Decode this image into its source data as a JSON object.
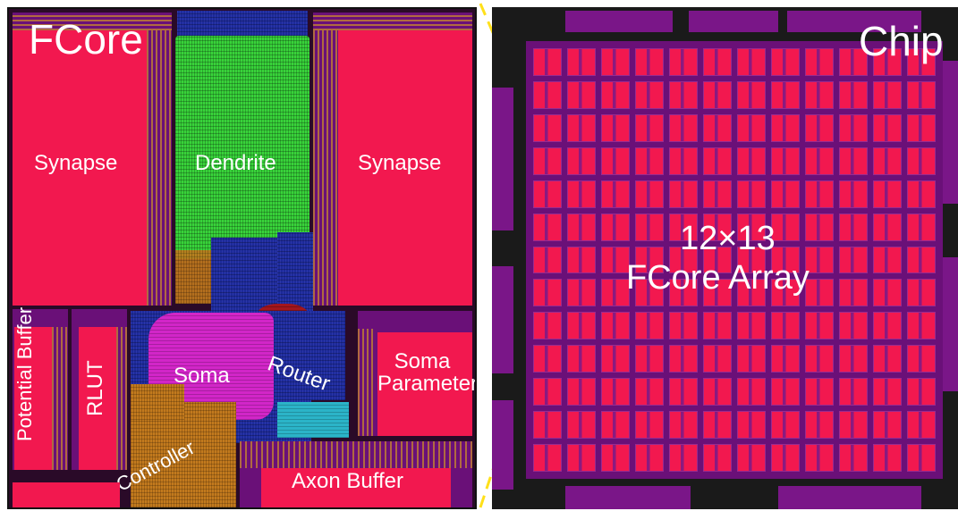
{
  "fcore_panel": {
    "title": "FCore",
    "blocks": {
      "synapse_left": "Synapse",
      "dendrite": "Dendrite",
      "synapse_right": "Synapse",
      "potential_buffer": "Potential Buffer",
      "rlut": "RLUT",
      "soma": "Soma",
      "router": "Router",
      "soma_parameter": "Soma Parameter",
      "controller": "Controller",
      "axon_buffer": "Axon Buffer"
    }
  },
  "chip_panel": {
    "title": "Chip",
    "array_label_line1": "12×13",
    "array_label_line2": "FCore Array",
    "array_columns": 12,
    "array_rows": 13
  },
  "colors": {
    "sram": "#f2184f",
    "dendrite": "#38d33a",
    "router": "#1c2a9a",
    "soma": "#d226c8",
    "controller": "#c27a1e",
    "zoom_line": "#ffe01a"
  }
}
